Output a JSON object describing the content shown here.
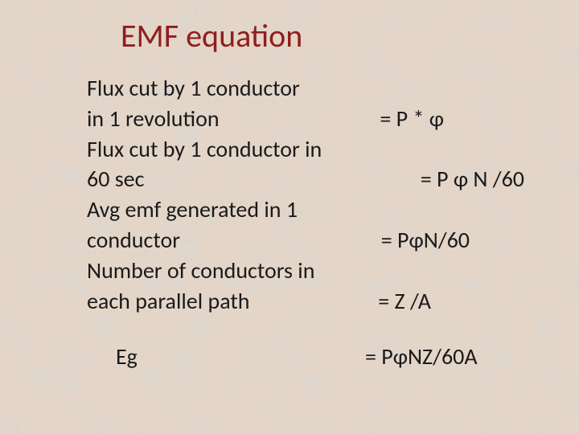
{
  "slide": {
    "title": "EMF equation",
    "lines": {
      "l1": "Flux cut by 1 conductor",
      "l2_left": "in 1 revolution",
      "l2_right": "= P * φ",
      "l3": "Flux cut by 1 conductor in",
      "l4_left": " 60 sec",
      "l4_right": "= P φ N /60",
      "l5": "Avg emf generated in 1",
      "l6_left": "conductor",
      "l6_right": "= PφN/60",
      "l7": "Number of conductors in",
      "l8_left": "each parallel path",
      "l8_right": "= Z /A",
      "final_left": "Eg",
      "final_right": "= PφNZ/60A"
    },
    "colors": {
      "title": "#8f1e1e",
      "body": "#1a1a1a",
      "background": "#e3d5c8",
      "droplet": "rgba(200,215,225,0.25)"
    },
    "typography": {
      "title_fontsize": 40,
      "body_fontsize": 28,
      "font_family": "Calibri"
    }
  }
}
